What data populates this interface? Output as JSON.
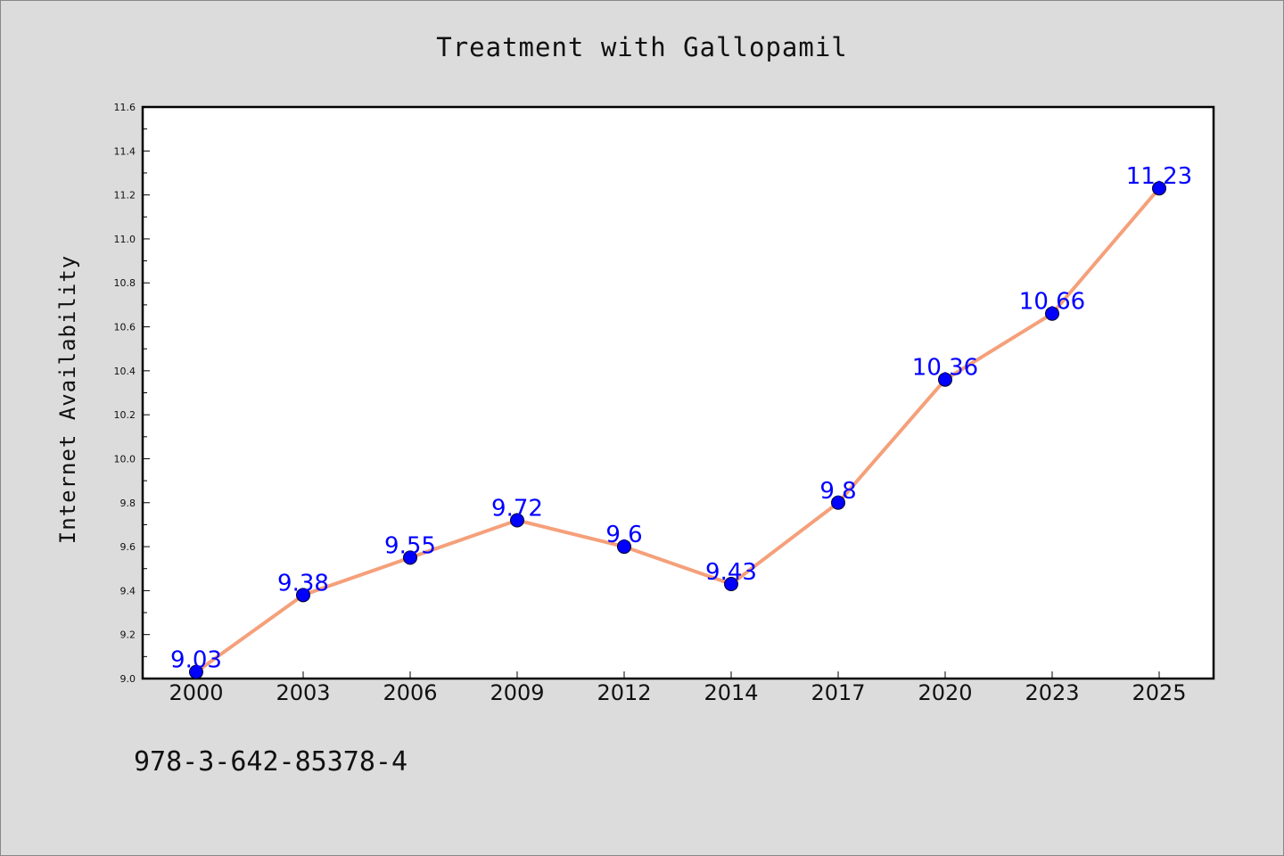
{
  "chart_data": {
    "type": "line",
    "title": "Treatment with Gallopamil",
    "xlabel": "",
    "ylabel": "Internet Availability",
    "categories": [
      "2000",
      "2003",
      "2006",
      "2009",
      "2012",
      "2014",
      "2017",
      "2020",
      "2023",
      "2025"
    ],
    "series": [
      {
        "values": [
          9.03,
          9.38,
          9.55,
          9.72,
          9.6,
          9.43,
          9.8,
          10.36,
          10.66,
          11.23
        ],
        "labels": [
          "9.03",
          "9.38",
          "9.55",
          "9.72",
          "9.6",
          "9.43",
          "9.8",
          "10.36",
          "10.66",
          "11.23"
        ]
      }
    ],
    "ylim": [
      9.0,
      11.6
    ],
    "yticks": [
      "9.0",
      "9.2",
      "9.4",
      "9.6",
      "9.8",
      "10.0",
      "10.2",
      "10.4",
      "10.6",
      "10.8",
      "11.0",
      "11.2",
      "11.4",
      "11.6"
    ],
    "grid": false,
    "legend": "none",
    "line_color": "#f5a07a",
    "marker_color": "#0000ff",
    "label_color": "#0000ff",
    "background_color": "#dcdcdc",
    "plot_background_color": "#ffffff"
  },
  "footer": {
    "isbn": "978-3-642-85378-4"
  }
}
